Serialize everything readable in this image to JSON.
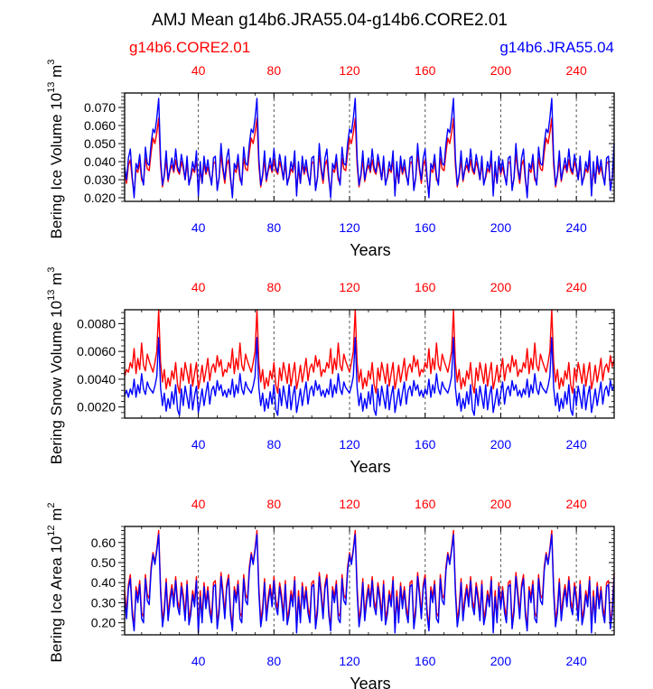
{
  "title": "AMJ Mean g14b6.JRA55.04-g14b6.CORE2.01",
  "legend": {
    "left": {
      "label": "g14b6.CORE2.01",
      "color": "#ff0000"
    },
    "right": {
      "label": "g14b6.JRA55.04",
      "color": "#0000ff"
    }
  },
  "colors": {
    "red": "#ff0000",
    "blue": "#0000ff",
    "axis": "#000000",
    "grid": "#555555"
  },
  "chart_data": [
    {
      "type": "line",
      "name": "ice-volume",
      "xlabel": "Years",
      "ylabel": {
        "text": "Bering Ice Volume 10",
        "exp": "13",
        "unit": " m",
        "unit_exp": "3"
      },
      "xlim": [
        1,
        260
      ],
      "ylim": [
        0.018,
        0.078
      ],
      "yticks": [
        0.02,
        0.03,
        0.04,
        0.05,
        0.06,
        0.07
      ],
      "ytick_labels": [
        "0.020",
        "0.030",
        "0.040",
        "0.050",
        "0.060",
        "0.070"
      ],
      "xticks": [
        40,
        80,
        120,
        160,
        200,
        240
      ],
      "xtick_labels": [
        "40",
        "80",
        "120",
        "160",
        "200",
        "240"
      ],
      "top_tick_labels": [
        "40",
        "80",
        "120",
        "160",
        "200",
        "240"
      ],
      "grid_x": [
        40,
        80,
        120,
        160,
        200,
        240
      ],
      "cycle_length": 52,
      "series": [
        {
          "name": "g14b6.CORE2.01",
          "color": "#ff0000",
          "cycle": [
            0.035,
            0.028,
            0.038,
            0.041,
            0.03,
            0.022,
            0.036,
            0.034,
            0.04,
            0.03,
            0.028,
            0.042,
            0.036,
            0.035,
            0.045,
            0.053,
            0.05,
            0.056,
            0.064,
            0.038,
            0.026,
            0.032,
            0.041,
            0.029,
            0.035,
            0.038,
            0.034,
            0.041,
            0.035,
            0.033,
            0.04,
            0.036,
            0.03,
            0.039,
            0.028,
            0.031,
            0.036,
            0.034,
            0.041,
            0.023,
            0.036,
            0.028,
            0.039,
            0.033,
            0.037,
            0.032,
            0.028,
            0.039,
            0.04,
            0.025,
            0.031,
            0.044
          ]
        },
        {
          "name": "g14b6.JRA55.04",
          "color": "#0000ff",
          "cycle": [
            0.037,
            0.03,
            0.042,
            0.047,
            0.032,
            0.02,
            0.039,
            0.036,
            0.044,
            0.032,
            0.027,
            0.048,
            0.039,
            0.038,
            0.05,
            0.058,
            0.056,
            0.064,
            0.075,
            0.042,
            0.027,
            0.033,
            0.046,
            0.03,
            0.036,
            0.042,
            0.035,
            0.047,
            0.037,
            0.034,
            0.044,
            0.038,
            0.03,
            0.043,
            0.027,
            0.032,
            0.04,
            0.035,
            0.046,
            0.021,
            0.04,
            0.028,
            0.043,
            0.034,
            0.041,
            0.033,
            0.027,
            0.042,
            0.043,
            0.024,
            0.031,
            0.05
          ]
        }
      ]
    },
    {
      "type": "line",
      "name": "snow-volume",
      "xlabel": "Years",
      "ylabel": {
        "text": "Bering Snow Volume 10",
        "exp": "13",
        "unit": " m",
        "unit_exp": "3"
      },
      "xlim": [
        1,
        260
      ],
      "ylim": [
        0.0012,
        0.009
      ],
      "yticks": [
        0.002,
        0.004,
        0.006,
        0.008
      ],
      "ytick_labels": [
        "0.0020",
        "0.0040",
        "0.0060",
        "0.0080"
      ],
      "xticks": [
        40,
        80,
        120,
        160,
        200,
        240
      ],
      "xtick_labels": [
        "40",
        "80",
        "120",
        "160",
        "200",
        "240"
      ],
      "top_tick_labels": [
        "40",
        "80",
        "120",
        "160",
        "200",
        "240"
      ],
      "grid_x": [
        40,
        80,
        120,
        160,
        200,
        240
      ],
      "cycle_length": 52,
      "series": [
        {
          "name": "g14b6.CORE2.01",
          "color": "#ff0000",
          "cycle": [
            0.0042,
            0.0047,
            0.0045,
            0.0052,
            0.0048,
            0.0062,
            0.0044,
            0.0055,
            0.0047,
            0.0066,
            0.005,
            0.0046,
            0.0058,
            0.0053,
            0.0049,
            0.0045,
            0.0052,
            0.006,
            0.009,
            0.0052,
            0.0038,
            0.0047,
            0.0033,
            0.0041,
            0.0035,
            0.0046,
            0.004,
            0.0052,
            0.0036,
            0.003,
            0.0048,
            0.0039,
            0.0052,
            0.0045,
            0.0037,
            0.0051,
            0.0035,
            0.0044,
            0.0052,
            0.0033,
            0.004,
            0.005,
            0.0038,
            0.0046,
            0.0055,
            0.0039,
            0.0048,
            0.0051,
            0.0045,
            0.0057,
            0.0049,
            0.0054
          ]
        },
        {
          "name": "g14b6.JRA55.04",
          "color": "#0000ff",
          "cycle": [
            0.0028,
            0.0032,
            0.0027,
            0.0033,
            0.0029,
            0.004,
            0.0027,
            0.0036,
            0.003,
            0.0044,
            0.0033,
            0.0029,
            0.0038,
            0.0034,
            0.0032,
            0.003,
            0.0035,
            0.0042,
            0.007,
            0.0034,
            0.0021,
            0.003,
            0.0017,
            0.0026,
            0.0019,
            0.0031,
            0.0022,
            0.0036,
            0.0018,
            0.0014,
            0.0033,
            0.0021,
            0.0035,
            0.0027,
            0.0019,
            0.0036,
            0.0018,
            0.0028,
            0.0035,
            0.0016,
            0.0024,
            0.0033,
            0.0021,
            0.003,
            0.0038,
            0.0022,
            0.0032,
            0.0035,
            0.0028,
            0.0039,
            0.0032,
            0.0036
          ]
        }
      ]
    },
    {
      "type": "line",
      "name": "ice-area",
      "xlabel": "Years",
      "ylabel": {
        "text": "Bering Ice Area 10",
        "exp": "12",
        "unit": " m",
        "unit_exp": "2"
      },
      "xlim": [
        1,
        260
      ],
      "ylim": [
        0.14,
        0.68
      ],
      "yticks": [
        0.2,
        0.3,
        0.4,
        0.5,
        0.6
      ],
      "ytick_labels": [
        "0.20",
        "0.30",
        "0.40",
        "0.50",
        "0.60"
      ],
      "xticks": [
        40,
        80,
        120,
        160,
        200,
        240
      ],
      "xtick_labels": [
        "40",
        "80",
        "120",
        "160",
        "200",
        "240"
      ],
      "top_tick_labels": [
        "40",
        "80",
        "120",
        "160",
        "200",
        "240"
      ],
      "grid_x": [
        40,
        80,
        120,
        160,
        200,
        240
      ],
      "cycle_length": 52,
      "series": [
        {
          "name": "g14b6.CORE2.01",
          "color": "#ff0000",
          "cycle": [
            0.36,
            0.25,
            0.39,
            0.44,
            0.27,
            0.17,
            0.38,
            0.33,
            0.41,
            0.25,
            0.23,
            0.44,
            0.34,
            0.32,
            0.48,
            0.55,
            0.5,
            0.57,
            0.66,
            0.38,
            0.21,
            0.28,
            0.42,
            0.24,
            0.33,
            0.39,
            0.31,
            0.43,
            0.31,
            0.27,
            0.4,
            0.34,
            0.24,
            0.41,
            0.22,
            0.27,
            0.36,
            0.31,
            0.43,
            0.17,
            0.36,
            0.23,
            0.4,
            0.3,
            0.38,
            0.28,
            0.23,
            0.4,
            0.41,
            0.19,
            0.28,
            0.45
          ]
        },
        {
          "name": "g14b6.JRA55.04",
          "color": "#0000ff",
          "cycle": [
            0.33,
            0.22,
            0.37,
            0.42,
            0.24,
            0.16,
            0.36,
            0.3,
            0.39,
            0.22,
            0.2,
            0.42,
            0.31,
            0.29,
            0.46,
            0.54,
            0.49,
            0.56,
            0.64,
            0.35,
            0.18,
            0.25,
            0.4,
            0.21,
            0.3,
            0.37,
            0.28,
            0.41,
            0.28,
            0.24,
            0.38,
            0.31,
            0.21,
            0.39,
            0.19,
            0.24,
            0.34,
            0.28,
            0.41,
            0.15,
            0.33,
            0.2,
            0.38,
            0.27,
            0.36,
            0.25,
            0.2,
            0.38,
            0.39,
            0.17,
            0.25,
            0.43
          ]
        }
      ]
    }
  ]
}
